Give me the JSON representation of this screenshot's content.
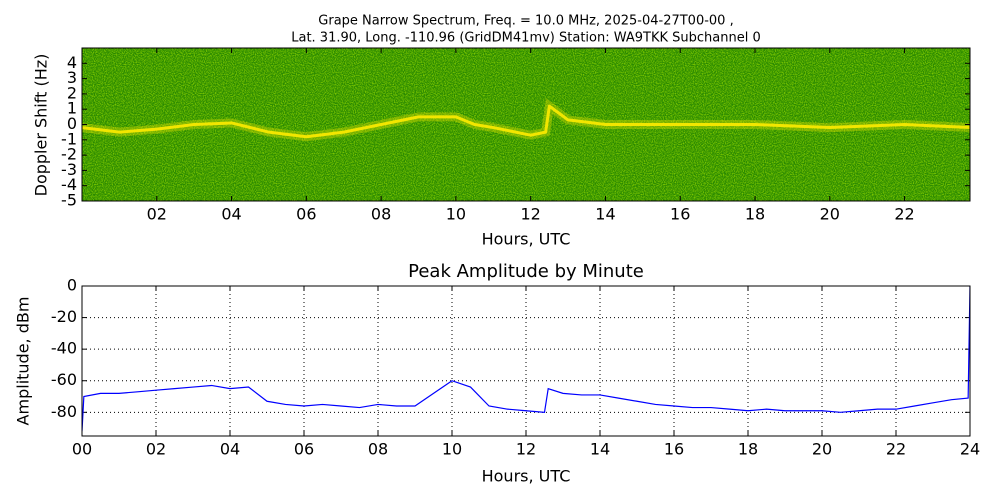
{
  "chart_data": [
    {
      "type": "spectrogram",
      "title_lines": [
        "Grape Narrow Spectrum, Freq. = 10.0 MHz, 2025-04-27T00-00 ,",
        "Lat.  31.90, Long. -110.96 (GridDM41mv) Station: WA9TKK Subchannel 0"
      ],
      "xlabel": "Hours, UTC",
      "ylabel": "Doppler Shift (Hz)",
      "xlim": [
        0,
        23.75
      ],
      "ylim": [
        -5,
        5
      ],
      "xticks": [
        {
          "value": 2,
          "label": "02"
        },
        {
          "value": 4,
          "label": "04"
        },
        {
          "value": 6,
          "label": "06"
        },
        {
          "value": 8,
          "label": "08"
        },
        {
          "value": 10,
          "label": "10"
        },
        {
          "value": 12,
          "label": "12"
        },
        {
          "value": 14,
          "label": "14"
        },
        {
          "value": 16,
          "label": "16"
        },
        {
          "value": 18,
          "label": "18"
        },
        {
          "value": 20,
          "label": "20"
        },
        {
          "value": 22,
          "label": "22"
        }
      ],
      "yticks": [
        -5,
        -4,
        -3,
        -2,
        -1,
        0,
        1,
        2,
        3,
        4
      ],
      "background_color": "#2a8a00",
      "color": "#f2e600",
      "x": [
        0,
        1,
        2,
        3,
        4,
        5,
        6,
        7,
        8,
        9,
        10,
        10.5,
        11,
        12,
        12.4,
        12.5,
        13,
        14,
        15,
        16,
        18,
        20,
        22,
        23.75
      ],
      "values": [
        -0.2,
        -0.5,
        -0.3,
        0,
        0.1,
        -0.5,
        -0.8,
        -0.5,
        0,
        0.5,
        0.5,
        0,
        -0.2,
        -0.7,
        -0.5,
        1.2,
        0.3,
        0,
        0,
        0,
        0,
        -0.2,
        0,
        -0.2
      ]
    },
    {
      "type": "line",
      "title": "Peak Amplitude by Minute",
      "xlabel": "Hours, UTC",
      "ylabel": "Amplitude, dBm",
      "xlim": [
        0,
        24
      ],
      "ylim": [
        -95,
        0
      ],
      "xticks": [
        {
          "value": 0,
          "label": "00"
        },
        {
          "value": 2,
          "label": "02"
        },
        {
          "value": 4,
          "label": "04"
        },
        {
          "value": 6,
          "label": "06"
        },
        {
          "value": 8,
          "label": "08"
        },
        {
          "value": 10,
          "label": "10"
        },
        {
          "value": 12,
          "label": "12"
        },
        {
          "value": 14,
          "label": "14"
        },
        {
          "value": 16,
          "label": "16"
        },
        {
          "value": 18,
          "label": "18"
        },
        {
          "value": 20,
          "label": "20"
        },
        {
          "value": 22,
          "label": "22"
        },
        {
          "value": 24,
          "label": "24"
        }
      ],
      "yticks": [
        -80,
        -60,
        -40,
        -20,
        0
      ],
      "grid": true,
      "color": "#0000ff",
      "x": [
        0,
        0.05,
        0.5,
        1,
        1.5,
        2,
        2.5,
        3,
        3.5,
        4,
        4.5,
        5,
        5.5,
        6,
        6.5,
        7,
        7.5,
        8,
        8.5,
        9,
        9.5,
        10,
        10.5,
        11,
        11.5,
        12,
        12.5,
        12.6,
        13,
        13.5,
        14,
        14.5,
        15,
        15.5,
        16,
        16.5,
        17,
        17.5,
        18,
        18.5,
        19,
        19.5,
        20,
        20.5,
        21,
        21.5,
        22,
        22.5,
        23,
        23.5,
        23.95,
        24
      ],
      "values": [
        -92,
        -70,
        -68,
        -68,
        -67,
        -66,
        -65,
        -64,
        -63,
        -65,
        -64,
        -73,
        -75,
        -76,
        -75,
        -76,
        -77,
        -75,
        -76,
        -76,
        -68,
        -60,
        -64,
        -76,
        -78,
        -79,
        -80,
        -65,
        -68,
        -69,
        -69,
        -71,
        -73,
        -75,
        -76,
        -77,
        -77,
        -78,
        -79,
        -78,
        -79,
        -79,
        -79,
        -80,
        -79,
        -78,
        -78,
        -76,
        -74,
        -72,
        -71,
        0
      ]
    }
  ]
}
